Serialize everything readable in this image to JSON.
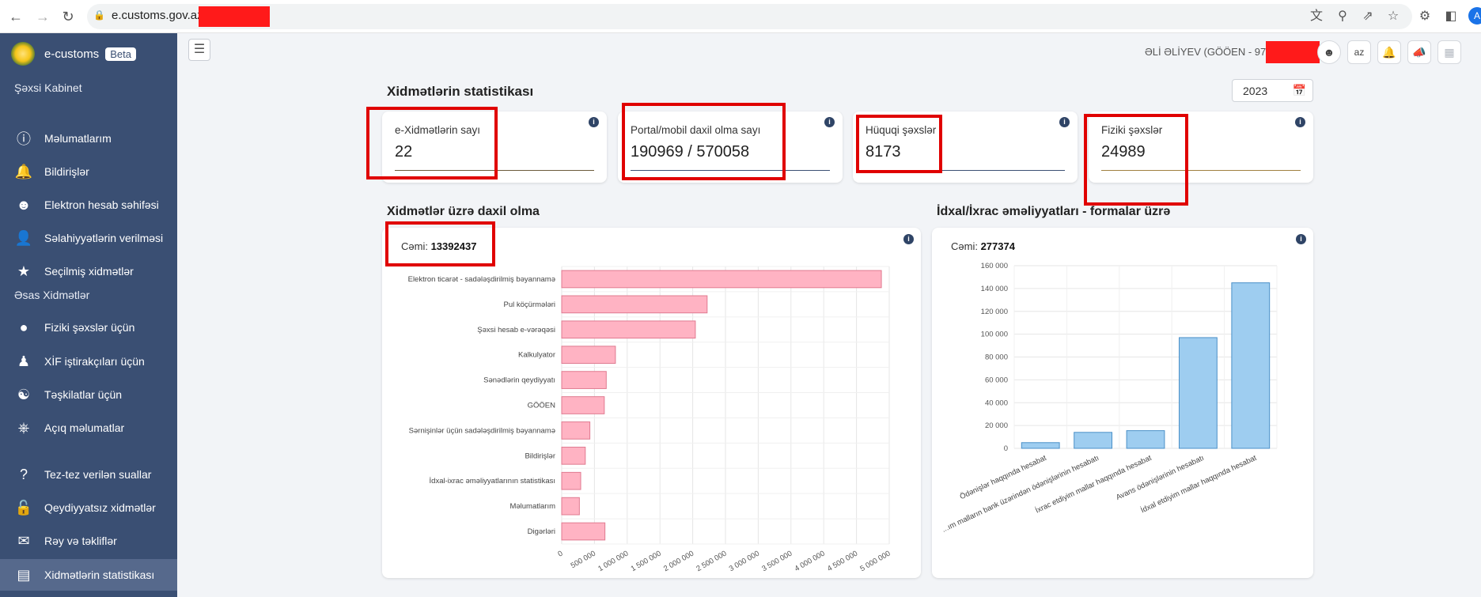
{
  "browser": {
    "url": "e.customs.gov.az/",
    "lock_icon": "lock-icon"
  },
  "sidebar": {
    "brand": "e-customs",
    "beta": "Beta",
    "section_personal": "Şəxsi Kabinet",
    "section_main": "Əsas Xidmətlər",
    "items": [
      {
        "label": "Məlumatlarım",
        "icon": "info-icon"
      },
      {
        "label": "Bildirişlər",
        "icon": "bell-icon"
      },
      {
        "label": "Elektron hesab səhifəsi",
        "icon": "account-icon"
      },
      {
        "label": "Səlahiyyətlərin verilməsi",
        "icon": "person-add-icon"
      },
      {
        "label": "Seçilmiş xidmətlər",
        "icon": "star-icon"
      },
      {
        "label": "Fiziki şəxslər üçün",
        "icon": "person-icon"
      },
      {
        "label": "XİF iştirakçıları üçün",
        "icon": "business-person-icon"
      },
      {
        "label": "Təşkilatlar üçün",
        "icon": "group-icon"
      },
      {
        "label": "Açıq məlumatlar",
        "icon": "share-nodes-icon"
      },
      {
        "label": "Tez-tez verilən suallar",
        "icon": "question-icon"
      },
      {
        "label": "Qeydiyyatsız xidmətlər",
        "icon": "unlock-icon"
      },
      {
        "label": "Rəy və təkliflər",
        "icon": "chat-icon"
      },
      {
        "label": "Xidmətlərin statistikası",
        "icon": "bar-chart-icon"
      }
    ]
  },
  "header": {
    "user": "ƏLİ ƏLİYEV (GÖÖEN - 97",
    "lang": "az"
  },
  "page": {
    "title": "Xidmətlərin statistikası",
    "year": "2023"
  },
  "cards": [
    {
      "label": "e-Xidmətlərin sayı",
      "value": "22",
      "line_color": "#6b5a3a"
    },
    {
      "label": "Portal/mobil daxil olma sayı",
      "value": "190969 / 570058",
      "line_color": "#3a4f73"
    },
    {
      "label": "Hüquqi şəxslər",
      "value": "8173",
      "line_color": "#3a4f73"
    },
    {
      "label": "Fiziki şəxslər",
      "value": "24989",
      "line_color": "#a08040"
    }
  ],
  "sections": {
    "logins_title": "Xidmətlər üzrə daxil olma",
    "imports_title": "İdxal/İxrac əməliyyatları - formalar üzrə"
  },
  "logins_panel": {
    "total_label": "Cəmi:",
    "total_value": "13392437"
  },
  "imports_panel": {
    "total_label": "Cəmi:",
    "total_value": "277374"
  },
  "chart_data": [
    {
      "type": "bar",
      "orientation": "horizontal",
      "categories": [
        "Elektron ticarət - sadələşdirilmiş bəyannamə",
        "Pul köçürmələri",
        "Şəxsi hesab e-vərəqəsi",
        "Kalkulyator",
        "Sənədlərin qeydiyyatı",
        "GÖÖEN",
        "Sərnişinlər üçün sadələşdirilmiş bəyannamə",
        "Bildirişlər",
        "İdxal-ixrac əməliyyatlarının statistikası",
        "Məlumatlarım",
        "Digərləri"
      ],
      "values": [
        4880000,
        2220000,
        2040000,
        820000,
        680000,
        650000,
        430000,
        360000,
        290000,
        270000,
        660000
      ],
      "xticks": [
        "0",
        "500 000",
        "1 000 000",
        "1 500 000",
        "2 000 000",
        "2 500 000",
        "3 000 000",
        "3 500 000",
        "4 000 000",
        "4 500 000",
        "5 000 000"
      ],
      "xlim": [
        0,
        5000000
      ],
      "color": "#ffb3c3",
      "border": "#e07a90"
    },
    {
      "type": "bar",
      "categories": [
        "Ödənişlər haqqında hesabat",
        "...ım malların bank üzərindən ödənişlərinin hesabatı",
        "İxrac etdiyim mallar haqqında hesabat",
        "Avans ödənişlərinin hesabatı",
        "İdxal etdiyim mallar haqqında hesabat"
      ],
      "values": [
        5000,
        14000,
        15500,
        97000,
        145000
      ],
      "yticks": [
        "0",
        "20 000",
        "40 000",
        "60 000",
        "80 000",
        "100 000",
        "120 000",
        "140 000",
        "160 000"
      ],
      "ylim": [
        0,
        160000
      ],
      "color": "#9ecdf0",
      "border": "#4a90c8"
    }
  ]
}
